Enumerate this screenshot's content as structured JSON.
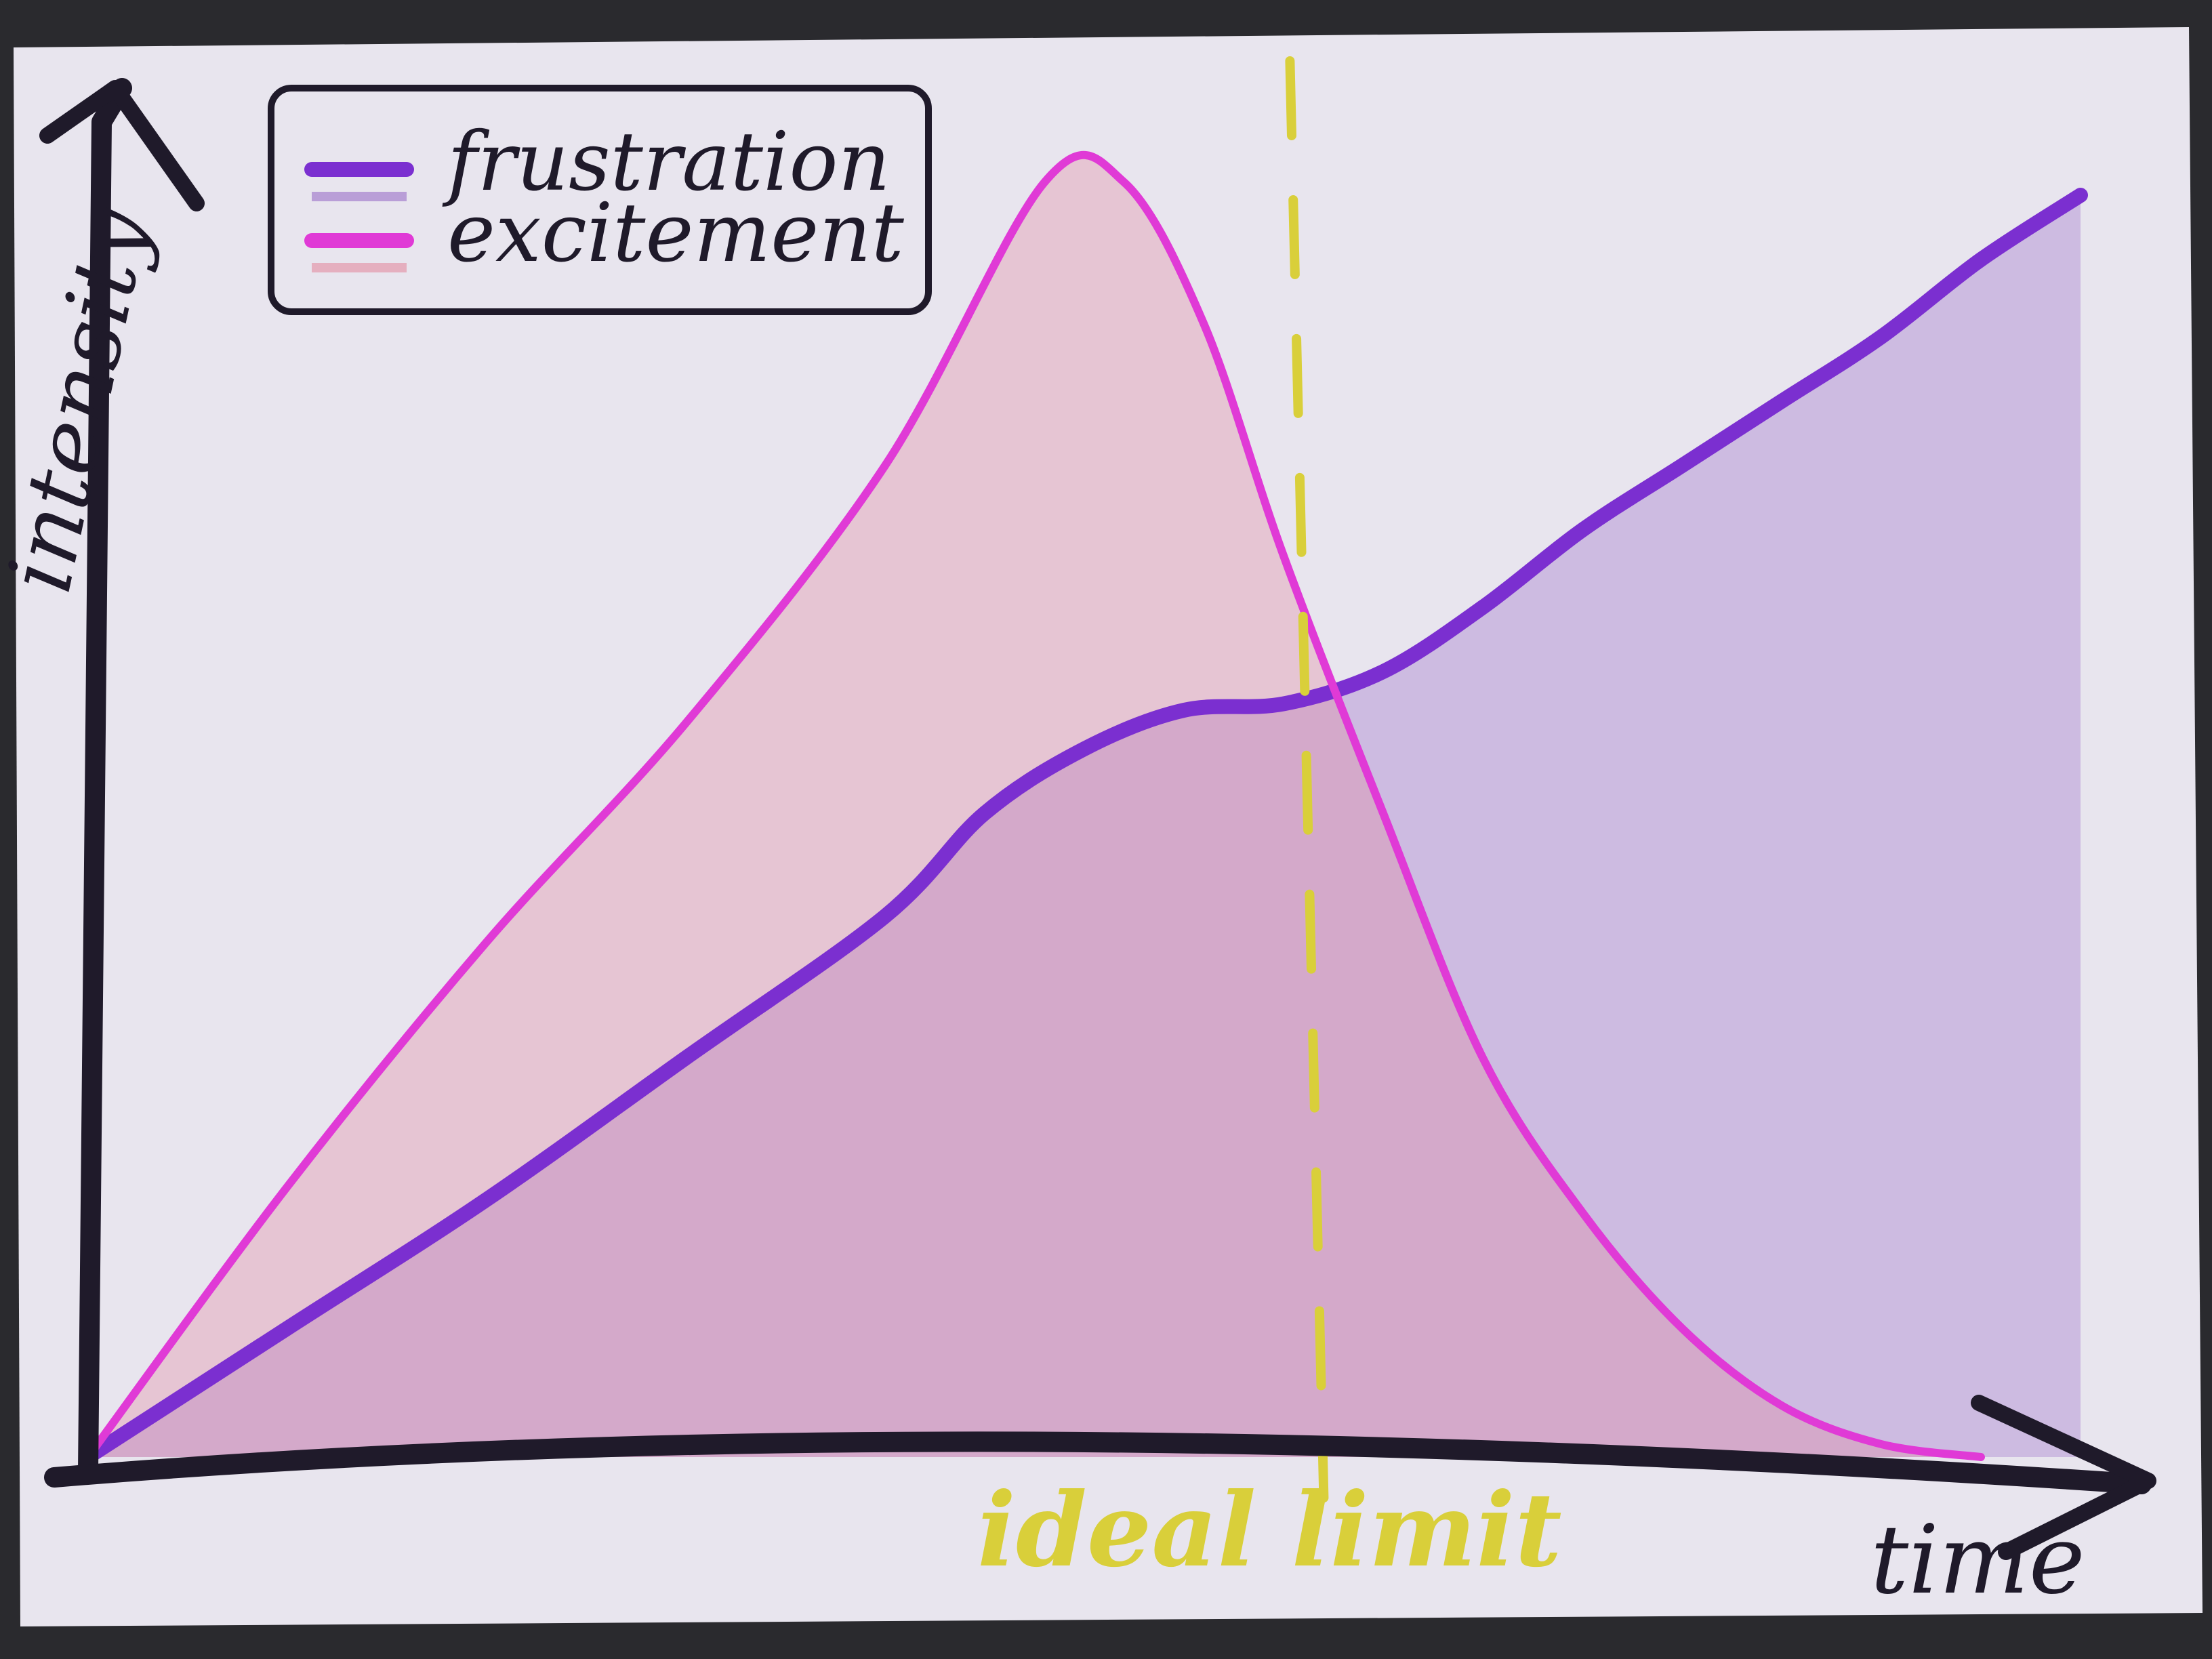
{
  "chart_data": {
    "type": "area",
    "xlabel": "time",
    "ylabel": "intensity",
    "x_range": [
      0,
      100
    ],
    "y_range": [
      0,
      100
    ],
    "grid": false,
    "legend_position": "top-left",
    "series": [
      {
        "name": "frustration",
        "color": "#7b2fd0",
        "fill": "#9a6ec8",
        "x": [
          0,
          10,
          20,
          30,
          40,
          45,
          50,
          55,
          60,
          65,
          70,
          75,
          80,
          85,
          90,
          95,
          100
        ],
        "y": [
          0,
          10,
          20,
          31,
          42,
          50,
          55,
          58,
          58.5,
          61,
          66,
          72,
          77,
          82,
          87,
          93,
          98
        ]
      },
      {
        "name": "excitement",
        "color": "#e03ad6",
        "fill": "#e28aa0",
        "x": [
          0,
          10,
          20,
          30,
          40,
          48,
          52,
          56,
          60,
          65,
          70,
          75,
          80,
          85,
          90,
          95
        ],
        "y": [
          0,
          21,
          40,
          57,
          77,
          99,
          99,
          88,
          70,
          50,
          31,
          19,
          10,
          4,
          1,
          0
        ]
      }
    ],
    "reference_lines": [
      {
        "axis": "x",
        "value": 61,
        "label": "ideal limit",
        "color": "#d9cf3a",
        "style": "dashed"
      }
    ]
  },
  "icons": {
    "x_arrow": "arrow-right-icon",
    "y_arrow": "arrow-up-icon"
  },
  "colors": {
    "paper": "#e9e6ee",
    "ink": "#1f1a2a",
    "background": "#2a2a2e"
  }
}
